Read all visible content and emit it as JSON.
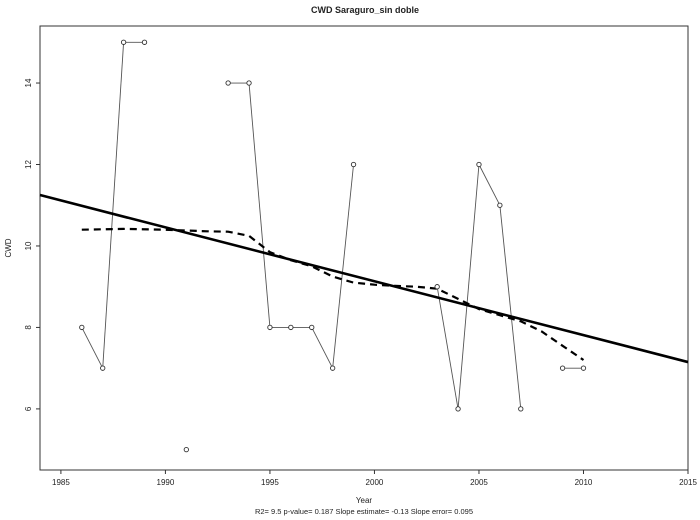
{
  "chart_data": {
    "type": "line",
    "title": "CWD   Saraguro_sin doble",
    "xlabel": "Year",
    "ylabel": "CWD",
    "footer": "R2= 9.5  p-value= 0.187  Slope estimate= -0.13  Slope error= 0.095",
    "xlim": [
      1984,
      2015
    ],
    "ylim": [
      4.5,
      15.4
    ],
    "x_ticks": [
      1985,
      1990,
      1995,
      2000,
      2005,
      2010,
      2015
    ],
    "y_ticks": [
      6,
      8,
      10,
      12,
      14
    ],
    "grid": false,
    "series": [
      {
        "style": "points-and-lines",
        "points": [
          {
            "x": 1986,
            "y": 8
          },
          {
            "x": 1987,
            "y": 7
          },
          {
            "x": 1988,
            "y": 15
          },
          {
            "x": 1989,
            "y": 15
          },
          {
            "x": 1990,
            "y": null
          },
          {
            "x": 1991,
            "y": 5
          },
          {
            "x": 1992,
            "y": null
          },
          {
            "x": 1993,
            "y": 14
          },
          {
            "x": 1994,
            "y": 14
          },
          {
            "x": 1995,
            "y": 8
          },
          {
            "x": 1996,
            "y": 8
          },
          {
            "x": 1997,
            "y": 8
          },
          {
            "x": 1998,
            "y": 7
          },
          {
            "x": 1999,
            "y": 12
          },
          {
            "x": 2000,
            "y": null
          },
          {
            "x": 2001,
            "y": null
          },
          {
            "x": 2002,
            "y": null
          },
          {
            "x": 2003,
            "y": 9
          },
          {
            "x": 2004,
            "y": 6
          },
          {
            "x": 2005,
            "y": 12
          },
          {
            "x": 2006,
            "y": 11
          },
          {
            "x": 2007,
            "y": 6
          },
          {
            "x": 2008,
            "y": null
          },
          {
            "x": 2009,
            "y": 7
          },
          {
            "x": 2010,
            "y": 7
          }
        ]
      },
      {
        "style": "solid-thick-trend",
        "points": [
          {
            "x": 1984,
            "y": 11.25
          },
          {
            "x": 2015,
            "y": 7.15
          }
        ]
      },
      {
        "style": "dashed-smooth",
        "points": [
          {
            "x": 1986,
            "y": 10.4
          },
          {
            "x": 1988,
            "y": 10.42
          },
          {
            "x": 1990,
            "y": 10.4
          },
          {
            "x": 1992,
            "y": 10.36
          },
          {
            "x": 1993,
            "y": 10.35
          },
          {
            "x": 1994,
            "y": 10.25
          },
          {
            "x": 1995,
            "y": 9.85
          },
          {
            "x": 1996,
            "y": 9.65
          },
          {
            "x": 1997,
            "y": 9.5
          },
          {
            "x": 1998,
            "y": 9.25
          },
          {
            "x": 1999,
            "y": 9.1
          },
          {
            "x": 2000,
            "y": 9.05
          },
          {
            "x": 2001,
            "y": 9.02
          },
          {
            "x": 2002,
            "y": 9.0
          },
          {
            "x": 2003,
            "y": 8.95
          },
          {
            "x": 2004,
            "y": 8.7
          },
          {
            "x": 2005,
            "y": 8.45
          },
          {
            "x": 2006,
            "y": 8.3
          },
          {
            "x": 2007,
            "y": 8.15
          },
          {
            "x": 2008,
            "y": 7.9
          },
          {
            "x": 2009,
            "y": 7.55
          },
          {
            "x": 2010,
            "y": 7.2
          }
        ]
      }
    ]
  }
}
